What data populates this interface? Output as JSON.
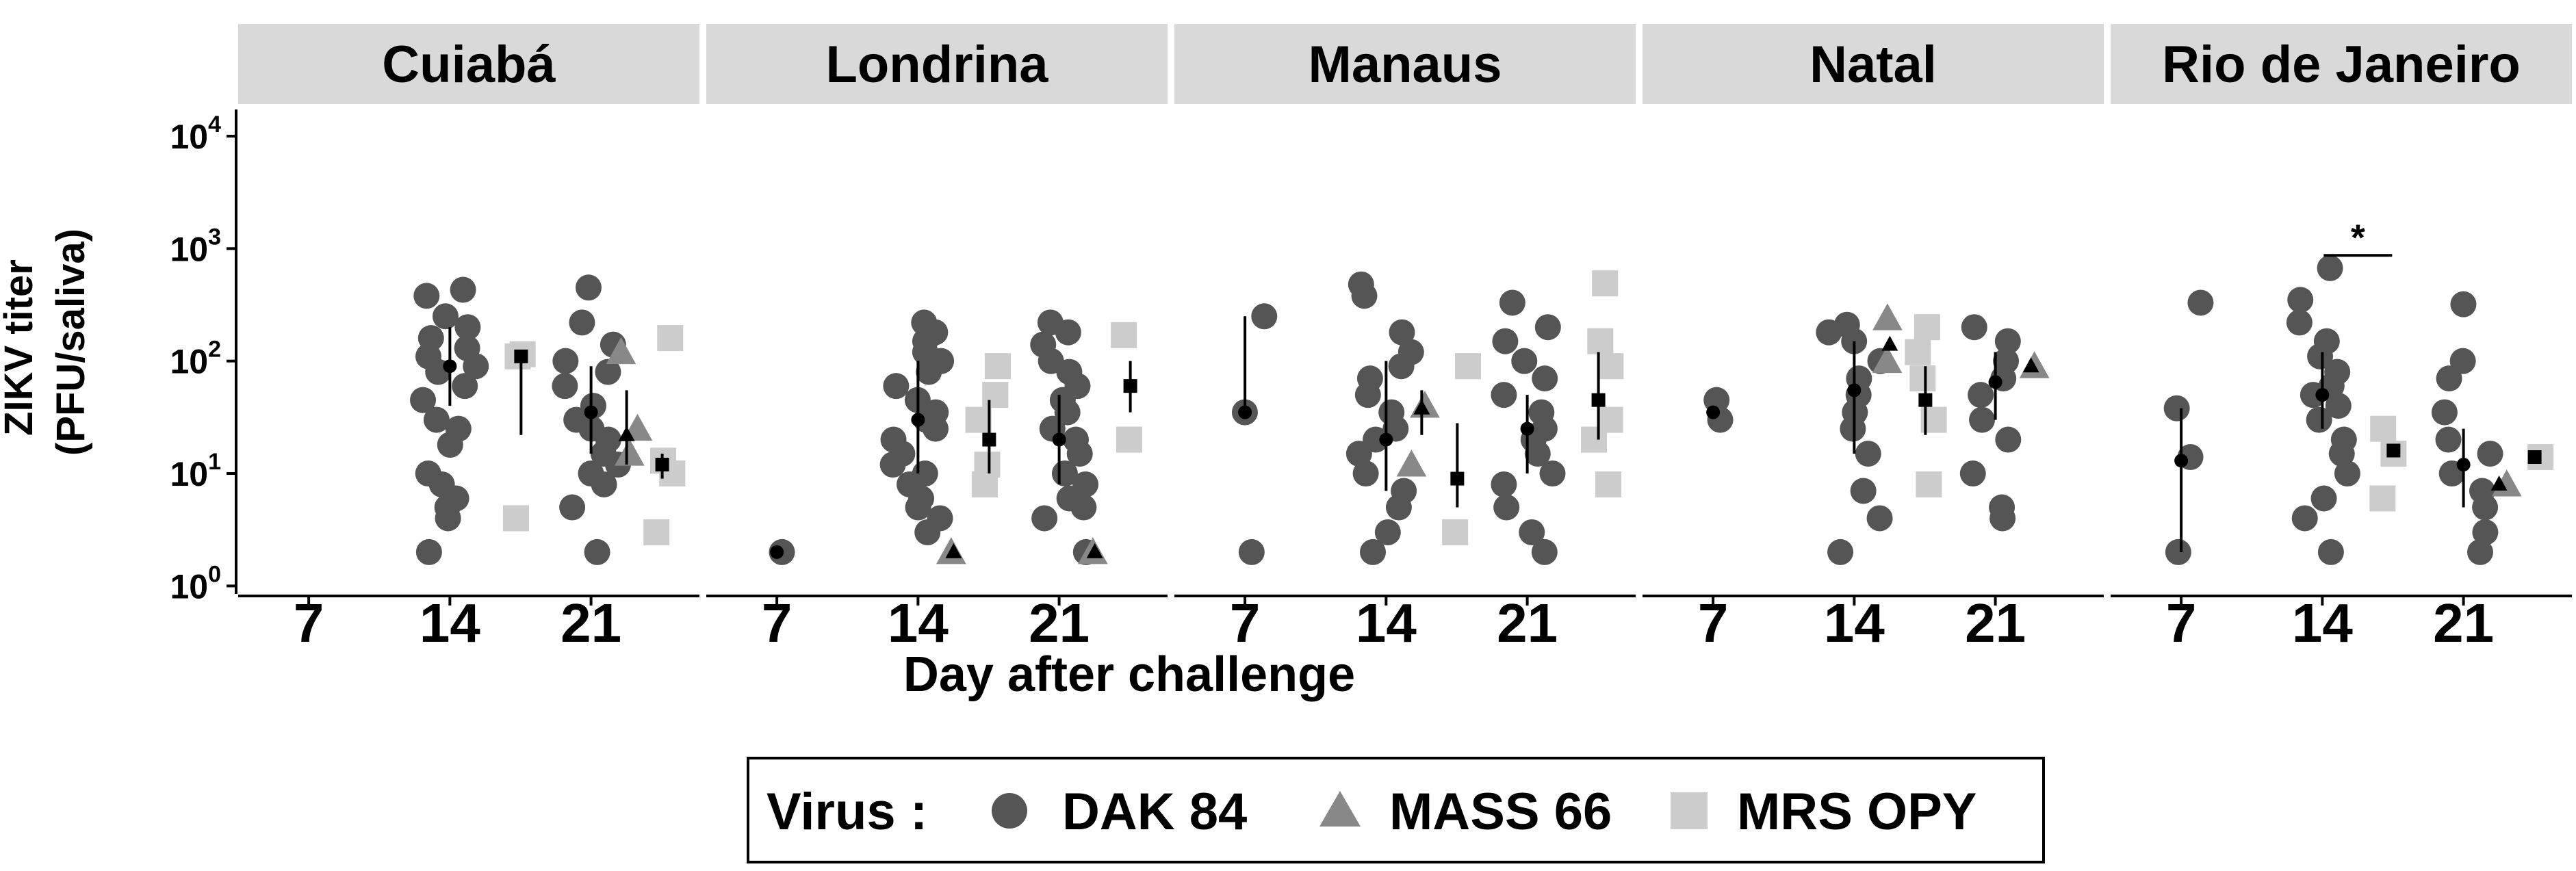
{
  "chart_data": {
    "type": "scatter",
    "title": "",
    "y_axis": {
      "title_line1": "ZIKV titer",
      "title_line2": "(PFU/saliva)",
      "scale": "log10",
      "ylim": [
        0.85,
        15000
      ],
      "ticks": [
        {
          "value": 1,
          "base": "10",
          "exp": "0"
        },
        {
          "value": 10,
          "base": "10",
          "exp": "1"
        },
        {
          "value": 100,
          "base": "10",
          "exp": "2"
        },
        {
          "value": 1000,
          "base": "10",
          "exp": "3"
        },
        {
          "value": 10000,
          "base": "10",
          "exp": "4"
        }
      ]
    },
    "x_axis": {
      "title": "Day after challenge",
      "days": [
        "7",
        "14",
        "21"
      ]
    },
    "legend": {
      "title": "Virus :",
      "position": "bottom",
      "items": [
        {
          "label": "DAK 84",
          "shape": "circle",
          "color": "#555555"
        },
        {
          "label": "MASS 66",
          "shape": "triangle",
          "color": "#888888"
        },
        {
          "label": "MRS OPY",
          "shape": "square",
          "color": "#cccccc"
        }
      ]
    },
    "significance": [
      {
        "panel": "Rio de Janeiro",
        "day": "14",
        "label": "*"
      }
    ],
    "panels": [
      {
        "name": "Cuiabá",
        "series": [
          {
            "virus": "DAK 84",
            "day": "14",
            "values": [
              430,
              380,
              250,
              200,
              160,
              130,
              110,
              90,
              80,
              60,
              45,
              30,
              25,
              18,
              10,
              8,
              6,
              5,
              4,
              2
            ],
            "summary": {
              "center": 90,
              "low": 40,
              "high": 200
            }
          },
          {
            "virus": "MRS OPY",
            "day": "14",
            "values": [
              115,
              110,
              4
            ],
            "summary": {
              "center": 110,
              "low": 22,
              "high": 120
            }
          },
          {
            "virus": "DAK 84",
            "day": "21",
            "values": [
              450,
              220,
              140,
              100,
              80,
              60,
              40,
              30,
              25,
              20,
              15,
              12,
              10,
              8,
              5,
              2
            ],
            "summary": {
              "center": 35,
              "low": 15,
              "high": 90
            }
          },
          {
            "virus": "MASS 66",
            "day": "21",
            "values": [
              120,
              25,
              15
            ],
            "summary": {
              "center": 22,
              "low": 12,
              "high": 55
            }
          },
          {
            "virus": "MRS OPY",
            "day": "21",
            "values": [
              160,
              13,
              10,
              3
            ],
            "summary": {
              "center": 12,
              "low": 9,
              "high": 15
            }
          }
        ]
      },
      {
        "name": "Londrina",
        "series": [
          {
            "virus": "DAK 84",
            "day": "7",
            "values": [
              2
            ],
            "summary": {
              "center": 2
            }
          },
          {
            "virus": "DAK 84",
            "day": "14",
            "values": [
              220,
              180,
              150,
              120,
              100,
              80,
              60,
              45,
              35,
              30,
              25,
              20,
              15,
              12,
              10,
              8,
              6,
              5,
              4,
              3
            ],
            "summary": {
              "center": 30,
              "low": 10,
              "high": 100
            }
          },
          {
            "virus": "MASS 66",
            "day": "14",
            "values": [
              2
            ],
            "summary": {
              "center": 2
            }
          },
          {
            "virus": "MRS OPY",
            "day": "14",
            "values": [
              90,
              50,
              30,
              12,
              8
            ],
            "summary": {
              "center": 20,
              "low": 10,
              "high": 45
            }
          },
          {
            "virus": "DAK 84",
            "day": "21",
            "values": [
              220,
              180,
              140,
              100,
              80,
              60,
              45,
              35,
              25,
              20,
              15,
              10,
              8,
              6,
              5,
              4,
              2
            ],
            "summary": {
              "center": 20,
              "low": 8,
              "high": 50
            }
          },
          {
            "virus": "MASS 66",
            "day": "21",
            "values": [
              2
            ],
            "summary": {
              "center": 2
            }
          },
          {
            "virus": "MRS OPY",
            "day": "21",
            "values": [
              170,
              20
            ],
            "summary": {
              "center": 60,
              "low": 35,
              "high": 100
            }
          }
        ]
      },
      {
        "name": "Manaus",
        "series": [
          {
            "virus": "DAK 84",
            "day": "7",
            "values": [
              250,
              35,
              2
            ],
            "summary": {
              "center": 35,
              "low": 35,
              "high": 250
            }
          },
          {
            "virus": "DAK 84",
            "day": "14",
            "values": [
              480,
              380,
              180,
              120,
              90,
              70,
              50,
              35,
              25,
              20,
              15,
              10,
              7,
              5,
              3,
              2
            ],
            "summary": {
              "center": 20,
              "low": 7,
              "high": 100
            }
          },
          {
            "virus": "MASS 66",
            "day": "14",
            "values": [
              40,
              12
            ],
            "summary": {
              "center": 38,
              "low": 22,
              "high": 55
            }
          },
          {
            "virus": "MRS OPY",
            "day": "14",
            "values": [
              90,
              3
            ],
            "summary": {
              "center": 9,
              "low": 5,
              "high": 28
            }
          },
          {
            "virus": "DAK 84",
            "day": "21",
            "values": [
              330,
              200,
              150,
              100,
              70,
              50,
              35,
              25,
              20,
              15,
              10,
              8,
              5,
              3,
              2
            ],
            "summary": {
              "center": 25,
              "low": 10,
              "high": 50
            }
          },
          {
            "virus": "MRS OPY",
            "day": "21",
            "values": [
              490,
              150,
              90,
              30,
              20,
              8
            ],
            "summary": {
              "center": 45,
              "low": 20,
              "high": 120
            }
          }
        ]
      },
      {
        "name": "Natal",
        "series": [
          {
            "virus": "DAK 84",
            "day": "7",
            "values": [
              45,
              30
            ],
            "summary": {
              "center": 35
            }
          },
          {
            "virus": "DAK 84",
            "day": "14",
            "values": [
              210,
              180,
              150,
              100,
              70,
              50,
              35,
              25,
              15,
              7,
              4,
              2
            ],
            "summary": {
              "center": 55,
              "low": 15,
              "high": 150
            }
          },
          {
            "virus": "MASS 66",
            "day": "14",
            "values": [
              240,
              100
            ],
            "summary": {
              "center": 140
            }
          },
          {
            "virus": "MRS OPY",
            "day": "14",
            "values": [
              200,
              120,
              70,
              30,
              8
            ],
            "summary": {
              "center": 45,
              "low": 22,
              "high": 90
            }
          },
          {
            "virus": "DAK 84",
            "day": "21",
            "values": [
              200,
              150,
              100,
              70,
              50,
              30,
              20,
              10,
              5,
              4
            ],
            "summary": {
              "center": 65,
              "low": 30,
              "high": 120
            }
          },
          {
            "virus": "MASS 66",
            "day": "21",
            "values": [
              90
            ],
            "summary": {
              "center": 90
            }
          }
        ]
      },
      {
        "name": "Rio de Janeiro",
        "series": [
          {
            "virus": "DAK 84",
            "day": "7",
            "values": [
              330,
              38,
              14,
              2
            ],
            "summary": {
              "center": 13,
              "low": 2,
              "high": 38
            }
          },
          {
            "virus": "DAK 84",
            "day": "14",
            "values": [
              670,
              350,
              220,
              150,
              110,
              80,
              60,
              50,
              40,
              30,
              20,
              15,
              10,
              6,
              4,
              2
            ],
            "summary": {
              "center": 50,
              "low": 25,
              "high": 120
            }
          },
          {
            "virus": "MRS OPY",
            "day": "14",
            "values": [
              25,
              15,
              6
            ],
            "summary": {
              "center": 16
            }
          },
          {
            "virus": "DAK 84",
            "day": "21",
            "values": [
              320,
              100,
              70,
              35,
              20,
              15,
              10,
              7,
              5,
              3,
              2
            ],
            "summary": {
              "center": 12,
              "low": 5,
              "high": 25
            }
          },
          {
            "virus": "MASS 66",
            "day": "21",
            "values": [
              8
            ],
            "summary": {
              "center": 8
            }
          },
          {
            "virus": "MRS OPY",
            "day": "21",
            "values": [
              14
            ],
            "summary": {
              "center": 14
            }
          }
        ]
      }
    ]
  }
}
